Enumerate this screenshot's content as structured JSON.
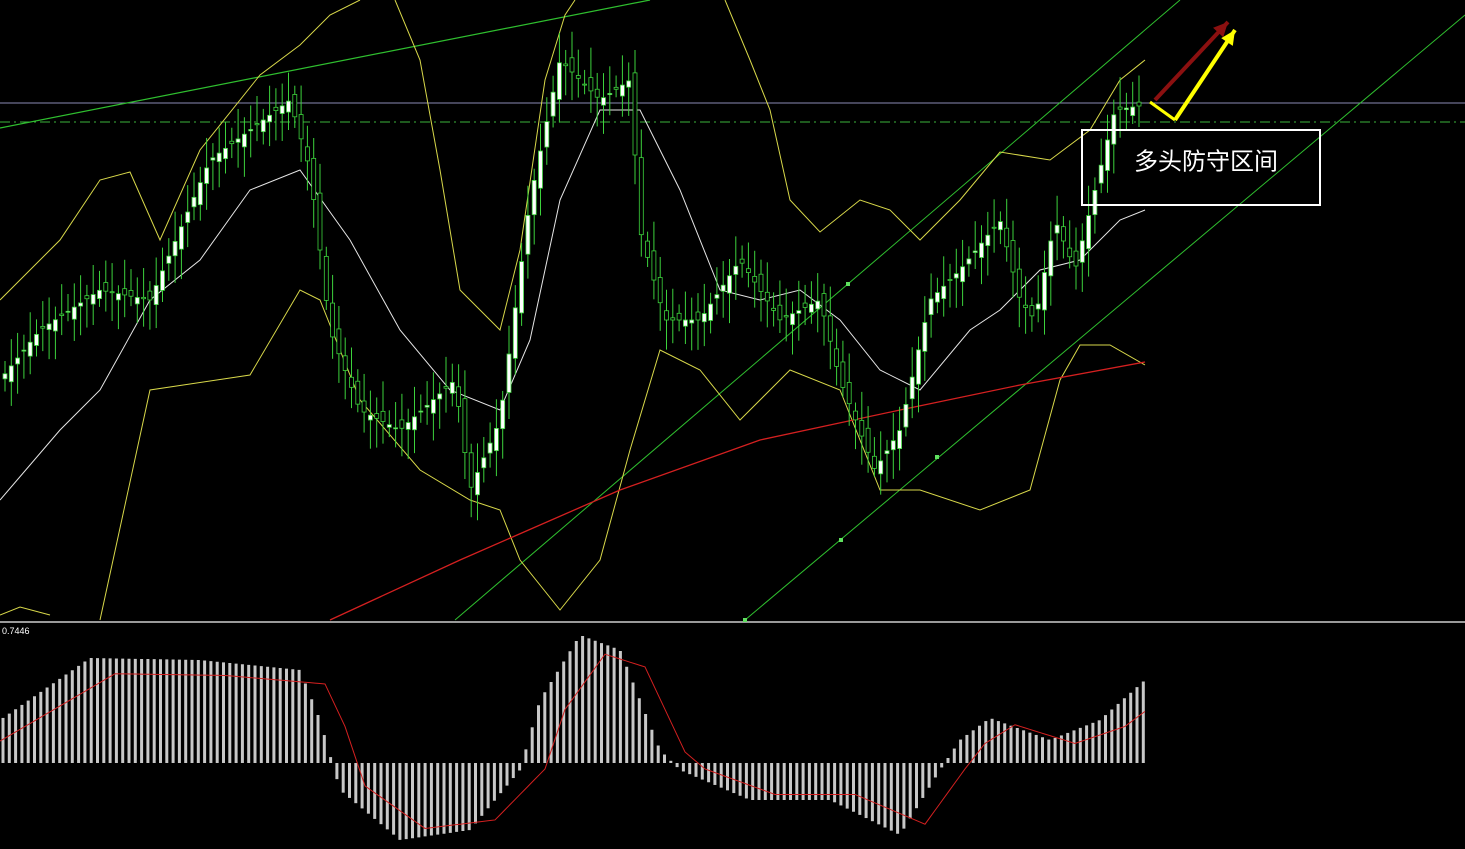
{
  "annotation": "多头防守区间",
  "macd_label": "0.7446"
}
